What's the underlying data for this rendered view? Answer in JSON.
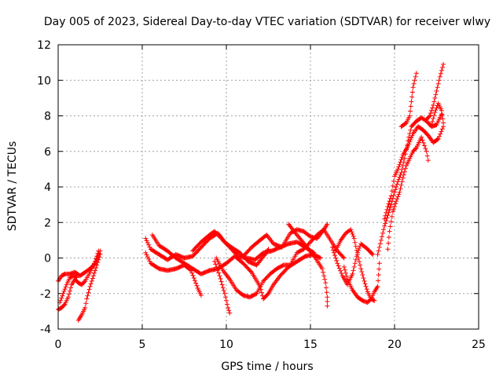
{
  "chart_data": {
    "type": "scatter",
    "title": "Day 005 of 2023, Sidereal Day-to-day VTEC variation (SDTVAR) for receiver wlwy",
    "xlabel": "GPS time / hours",
    "ylabel": "SDTVAR / TECUs",
    "xlim": [
      0,
      25
    ],
    "ylim": [
      -4,
      12
    ],
    "x_ticks": [
      0,
      5,
      10,
      15,
      20,
      25
    ],
    "y_ticks": [
      -4,
      -2,
      0,
      2,
      4,
      6,
      8,
      10,
      12
    ],
    "grid": true,
    "marker": "+",
    "series_color": "#ff0000",
    "series": [
      {
        "name": "s1",
        "points": [
          [
            0.0,
            -1.3
          ],
          [
            0.2,
            -1.0
          ],
          [
            0.4,
            -0.9
          ],
          [
            0.7,
            -0.9
          ],
          [
            1.0,
            -0.8
          ],
          [
            1.3,
            -1.0
          ],
          [
            1.6,
            -0.8
          ],
          [
            1.9,
            -0.6
          ],
          [
            2.2,
            -0.3
          ],
          [
            2.5,
            0.4
          ]
        ]
      },
      {
        "name": "s2",
        "points": [
          [
            0.0,
            -2.9
          ],
          [
            0.2,
            -2.8
          ],
          [
            0.4,
            -2.6
          ],
          [
            0.6,
            -2.2
          ],
          [
            0.8,
            -1.5
          ],
          [
            1.0,
            -1.2
          ],
          [
            1.2,
            -1.4
          ],
          [
            1.4,
            -1.5
          ],
          [
            1.6,
            -1.3
          ],
          [
            1.9,
            -0.8
          ],
          [
            2.2,
            -0.2
          ],
          [
            2.4,
            0.4
          ]
        ]
      },
      {
        "name": "s3",
        "points": [
          [
            1.2,
            -3.5
          ],
          [
            1.4,
            -3.2
          ],
          [
            1.6,
            -2.8
          ],
          [
            1.7,
            -2.3
          ],
          [
            1.9,
            -1.6
          ],
          [
            2.1,
            -1.0
          ],
          [
            2.3,
            -0.4
          ],
          [
            2.5,
            0.2
          ]
        ]
      },
      {
        "name": "s4",
        "points": [
          [
            0.1,
            -2.5
          ],
          [
            0.3,
            -2.0
          ],
          [
            0.5,
            -1.5
          ],
          [
            0.7,
            -1.1
          ],
          [
            0.9,
            -1.0
          ],
          [
            1.1,
            -1.1
          ]
        ]
      },
      {
        "name": "s5",
        "points": [
          [
            5.2,
            1.1
          ],
          [
            5.5,
            0.5
          ],
          [
            6.0,
            0.2
          ],
          [
            6.5,
            -0.1
          ],
          [
            7.0,
            0.2
          ],
          [
            7.5,
            0.0
          ],
          [
            8.0,
            0.1
          ],
          [
            8.5,
            0.6
          ],
          [
            9.0,
            1.1
          ],
          [
            9.5,
            1.4
          ],
          [
            9.9,
            0.9
          ],
          [
            10.3,
            0.6
          ],
          [
            10.8,
            0.3
          ],
          [
            11.3,
            -0.2
          ],
          [
            11.8,
            -0.4
          ],
          [
            12.3,
            0.2
          ],
          [
            12.5,
            0.5
          ]
        ]
      },
      {
        "name": "s6",
        "points": [
          [
            5.2,
            0.3
          ],
          [
            5.5,
            -0.3
          ],
          [
            6.0,
            -0.6
          ],
          [
            6.5,
            -0.7
          ],
          [
            7.0,
            -0.6
          ],
          [
            7.5,
            -0.4
          ],
          [
            7.9,
            -0.7
          ],
          [
            8.3,
            -1.7
          ],
          [
            8.5,
            -2.1
          ]
        ]
      },
      {
        "name": "s7",
        "points": [
          [
            5.6,
            1.3
          ],
          [
            6.0,
            0.7
          ],
          [
            6.5,
            0.4
          ],
          [
            7.0,
            0.0
          ],
          [
            7.5,
            -0.3
          ],
          [
            8.0,
            -0.6
          ],
          [
            8.5,
            -0.9
          ],
          [
            9.0,
            -0.7
          ],
          [
            9.5,
            -0.6
          ],
          [
            10.0,
            -0.3
          ],
          [
            10.5,
            0.1
          ],
          [
            11.0,
            -0.3
          ],
          [
            11.5,
            -0.8
          ],
          [
            12.0,
            -1.6
          ],
          [
            12.2,
            -2.3
          ],
          [
            12.5,
            -2.0
          ],
          [
            12.8,
            -1.5
          ],
          [
            13.2,
            -1.0
          ],
          [
            13.7,
            -0.5
          ],
          [
            14.2,
            -0.2
          ],
          [
            14.7,
            0.1
          ],
          [
            15.2,
            0.2
          ],
          [
            15.6,
            0.0
          ]
        ]
      },
      {
        "name": "s8",
        "points": [
          [
            9.3,
            -0.2
          ],
          [
            9.6,
            -1.0
          ],
          [
            9.9,
            -2.0
          ],
          [
            10.1,
            -2.8
          ],
          [
            10.2,
            -3.1
          ]
        ]
      },
      {
        "name": "s9",
        "points": [
          [
            9.4,
            0.0
          ],
          [
            9.8,
            -0.7
          ],
          [
            10.2,
            -1.2
          ],
          [
            10.6,
            -1.8
          ],
          [
            11.0,
            -2.1
          ],
          [
            11.4,
            -2.2
          ],
          [
            11.8,
            -2.0
          ],
          [
            12.2,
            -1.3
          ],
          [
            12.6,
            -0.9
          ],
          [
            13.0,
            -0.6
          ],
          [
            13.4,
            -0.4
          ],
          [
            13.8,
            -0.4
          ],
          [
            14.2,
            0.3
          ],
          [
            14.6,
            0.5
          ],
          [
            15.0,
            0.9
          ],
          [
            15.4,
            1.3
          ],
          [
            15.8,
            1.6
          ],
          [
            16.0,
            1.9
          ]
        ]
      },
      {
        "name": "s10",
        "points": [
          [
            8.0,
            0.4
          ],
          [
            8.5,
            0.9
          ],
          [
            9.0,
            1.3
          ],
          [
            9.3,
            1.5
          ],
          [
            9.7,
            1.1
          ],
          [
            10.2,
            0.6
          ],
          [
            10.7,
            0.1
          ],
          [
            11.2,
            0.0
          ],
          [
            11.7,
            -0.1
          ],
          [
            12.2,
            0.3
          ],
          [
            12.7,
            0.4
          ],
          [
            13.2,
            0.6
          ],
          [
            13.7,
            0.8
          ],
          [
            14.2,
            0.9
          ],
          [
            14.7,
            0.6
          ],
          [
            15.2,
            0.3
          ]
        ]
      },
      {
        "name": "s11",
        "points": [
          [
            11.0,
            0.1
          ],
          [
            11.5,
            0.6
          ],
          [
            12.0,
            1.0
          ],
          [
            12.4,
            1.3
          ],
          [
            12.8,
            0.8
          ],
          [
            13.3,
            0.6
          ],
          [
            13.8,
            1.4
          ],
          [
            14.2,
            1.6
          ],
          [
            14.6,
            1.5
          ],
          [
            15.0,
            1.2
          ],
          [
            15.4,
            1.1
          ],
          [
            15.8,
            1.6
          ],
          [
            16.2,
            1.0
          ],
          [
            16.6,
            0.4
          ],
          [
            17.0,
            0.0
          ]
        ]
      },
      {
        "name": "s12",
        "points": [
          [
            13.7,
            1.9
          ],
          [
            14.2,
            1.3
          ],
          [
            14.8,
            0.6
          ],
          [
            15.3,
            0.0
          ],
          [
            15.7,
            -0.6
          ],
          [
            15.9,
            -1.4
          ],
          [
            16.0,
            -2.2
          ],
          [
            16.0,
            -2.7
          ]
        ]
      },
      {
        "name": "s13",
        "points": [
          [
            16.3,
            0.6
          ],
          [
            16.6,
            -0.3
          ],
          [
            16.9,
            -1.0
          ],
          [
            17.2,
            -1.5
          ],
          [
            17.5,
            -0.9
          ],
          [
            17.8,
            0.3
          ],
          [
            18.0,
            0.8
          ],
          [
            18.4,
            0.5
          ],
          [
            18.7,
            0.2
          ]
        ]
      },
      {
        "name": "s14",
        "points": [
          [
            16.5,
            0.4
          ],
          [
            16.8,
            1.0
          ],
          [
            17.1,
            1.4
          ],
          [
            17.4,
            1.6
          ],
          [
            17.6,
            1.1
          ],
          [
            17.8,
            0.2
          ],
          [
            18.0,
            -0.6
          ],
          [
            18.2,
            -1.3
          ],
          [
            18.4,
            -1.9
          ],
          [
            18.6,
            -2.3
          ],
          [
            18.8,
            -2.4
          ]
        ]
      },
      {
        "name": "s15",
        "points": [
          [
            17.0,
            -0.5
          ],
          [
            17.2,
            -1.2
          ],
          [
            17.5,
            -1.8
          ],
          [
            17.8,
            -2.2
          ],
          [
            18.1,
            -2.4
          ],
          [
            18.4,
            -2.5
          ],
          [
            18.6,
            -2.3
          ],
          [
            18.8,
            -1.9
          ],
          [
            19.0,
            -1.6
          ],
          [
            19.1,
            -0.3
          ]
        ]
      },
      {
        "name": "s16",
        "points": [
          [
            19.0,
            0.2
          ],
          [
            19.2,
            1.0
          ],
          [
            19.4,
            1.8
          ],
          [
            19.6,
            2.4
          ],
          [
            19.8,
            3.0
          ],
          [
            20.0,
            3.7
          ],
          [
            20.2,
            4.3
          ],
          [
            20.4,
            4.8
          ],
          [
            20.6,
            5.6
          ],
          [
            20.8,
            6.6
          ],
          [
            21.0,
            7.4
          ],
          [
            21.3,
            7.7
          ],
          [
            21.6,
            7.9
          ],
          [
            21.9,
            7.7
          ],
          [
            22.2,
            7.4
          ],
          [
            22.5,
            7.5
          ],
          [
            22.8,
            8.1
          ]
        ]
      },
      {
        "name": "s17",
        "points": [
          [
            19.4,
            2.2
          ],
          [
            19.6,
            2.9
          ],
          [
            19.8,
            3.5
          ],
          [
            20.0,
            4.6
          ],
          [
            20.2,
            5.0
          ],
          [
            20.5,
            5.8
          ],
          [
            20.8,
            6.3
          ],
          [
            21.1,
            7.0
          ],
          [
            21.4,
            7.4
          ],
          [
            21.7,
            7.2
          ],
          [
            22.0,
            6.9
          ],
          [
            22.3,
            6.5
          ],
          [
            22.6,
            6.7
          ],
          [
            22.9,
            7.4
          ]
        ]
      },
      {
        "name": "s18",
        "points": [
          [
            19.6,
            0.5
          ],
          [
            19.7,
            1.5
          ],
          [
            19.9,
            2.6
          ],
          [
            20.1,
            3.2
          ],
          [
            20.3,
            3.7
          ],
          [
            20.5,
            4.5
          ],
          [
            20.7,
            5.2
          ],
          [
            20.9,
            5.6
          ],
          [
            21.1,
            6.0
          ],
          [
            21.3,
            6.2
          ],
          [
            21.6,
            6.8
          ],
          [
            21.9,
            6.0
          ],
          [
            22.0,
            5.5
          ]
        ]
      },
      {
        "name": "s19",
        "points": [
          [
            20.4,
            7.4
          ],
          [
            20.7,
            7.6
          ],
          [
            20.9,
            8.0
          ],
          [
            21.0,
            8.8
          ],
          [
            21.1,
            9.6
          ],
          [
            21.3,
            10.4
          ]
        ]
      },
      {
        "name": "s20",
        "points": [
          [
            21.9,
            7.8
          ],
          [
            22.1,
            8.0
          ],
          [
            22.3,
            8.6
          ],
          [
            22.5,
            9.4
          ],
          [
            22.7,
            10.2
          ],
          [
            22.9,
            10.9
          ]
        ]
      },
      {
        "name": "s21",
        "points": [
          [
            22.2,
            7.5
          ],
          [
            22.4,
            8.2
          ],
          [
            22.6,
            8.7
          ],
          [
            22.8,
            8.3
          ],
          [
            22.9,
            7.6
          ]
        ]
      }
    ]
  }
}
